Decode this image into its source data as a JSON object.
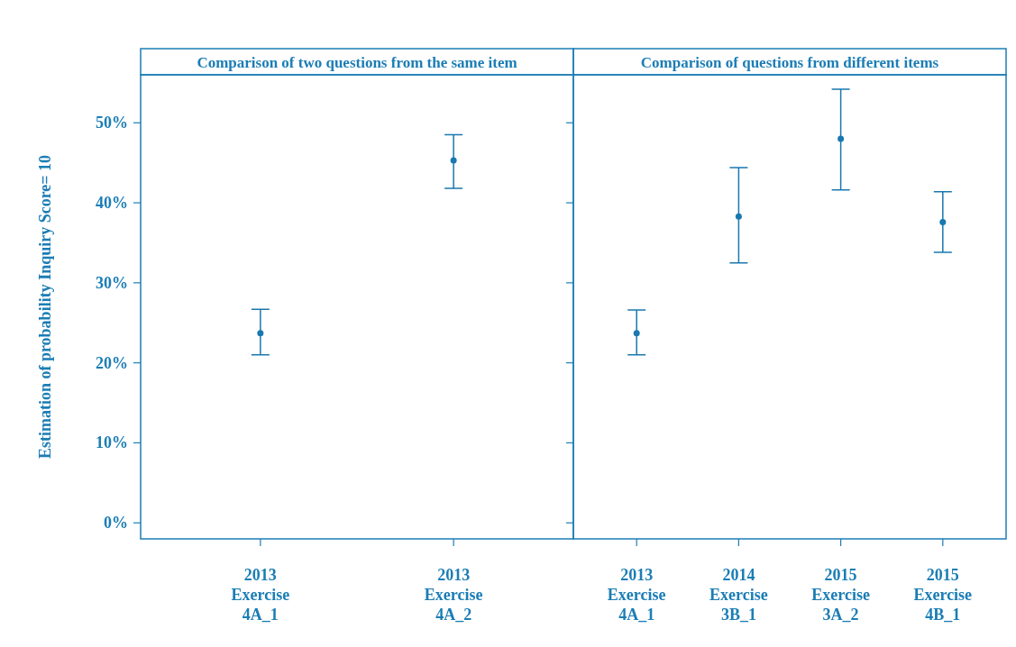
{
  "chart_data": [
    {
      "type": "scatter",
      "title": "Comparison of two questions from the same item",
      "ylabel": "Estimation of probability Inquiry Score= 10",
      "categories": [
        "2013\nExercise\n4A_1",
        "2013\nExercise\n4A_2"
      ],
      "series": [
        {
          "color": "#1a78b0",
          "values": [
            23.7,
            45.3
          ],
          "errors": [
            [
              21.0,
              26.7
            ],
            [
              41.8,
              48.5
            ]
          ]
        }
      ],
      "ylim": [
        -2,
        56
      ],
      "yticks": [
        {
          "value": 0,
          "label": "0%"
        },
        {
          "value": 10,
          "label": "10%"
        },
        {
          "value": 20,
          "label": "20%"
        },
        {
          "value": 30,
          "label": "30%"
        },
        {
          "value": 40,
          "label": "40%"
        },
        {
          "value": 50,
          "label": "50%"
        }
      ],
      "marker": "circle",
      "grid": false
    },
    {
      "type": "scatter",
      "title": "Comparison of questions from different items",
      "categories": [
        "2013\nExercise\n4A_1",
        "2014\nExercise\n3B_1",
        "2015\nExercise\n3A_2",
        "2015\nExercise\n4B_1"
      ],
      "series": [
        {
          "color": "#1a78b0",
          "values": [
            23.7,
            38.3,
            48.0,
            37.6
          ],
          "errors": [
            [
              21.0,
              26.6
            ],
            [
              32.5,
              44.4
            ],
            [
              41.6,
              54.2
            ],
            [
              33.8,
              41.4
            ]
          ]
        }
      ],
      "ylim": [
        -2,
        56
      ],
      "yticks": [
        {
          "value": 0,
          "label": null
        },
        {
          "value": 10,
          "label": null
        },
        {
          "value": 20,
          "label": null
        },
        {
          "value": 30,
          "label": null
        },
        {
          "value": 40,
          "label": null
        },
        {
          "value": 50,
          "label": null
        }
      ],
      "tick_labels": "x",
      "marker": "circle",
      "grid": false
    }
  ]
}
